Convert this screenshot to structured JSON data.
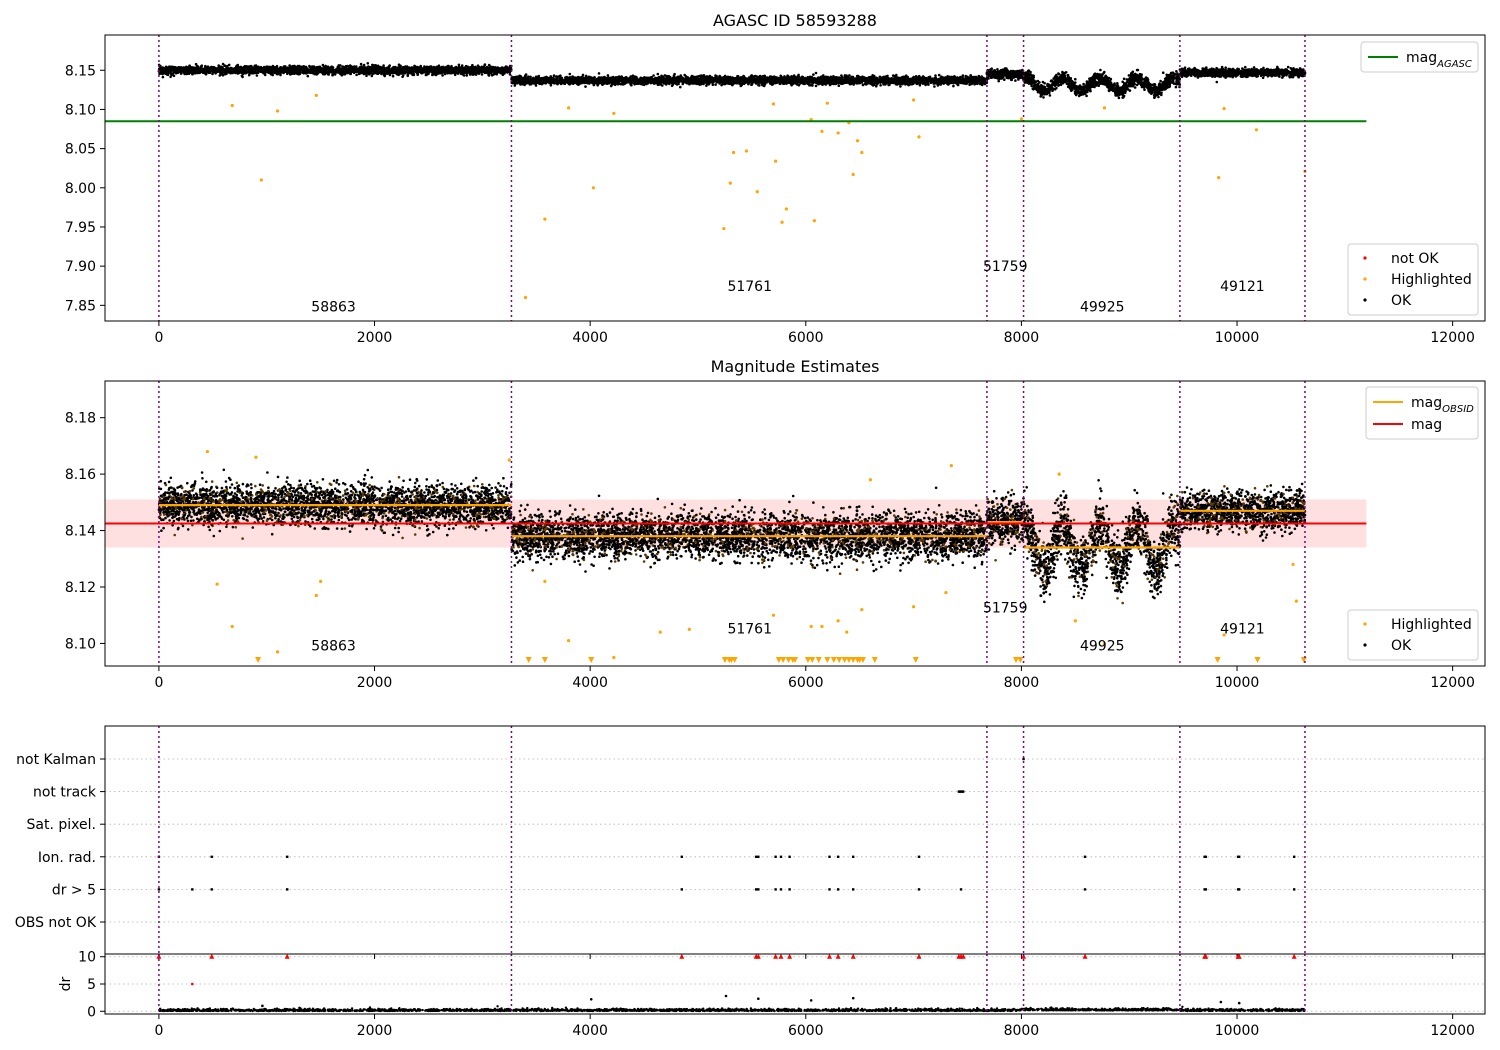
{
  "chart_data": [
    {
      "type": "scatter",
      "title": "AGASC ID 58593288",
      "xlim": [
        -500,
        12300
      ],
      "ylim": [
        7.83,
        8.195
      ],
      "xticks": [
        0,
        2000,
        4000,
        6000,
        8000,
        10000,
        12000
      ],
      "yticks": [
        7.85,
        7.9,
        7.95,
        8.0,
        8.05,
        8.1,
        8.15
      ],
      "vlines": [
        0,
        3270,
        7680,
        8020,
        9470,
        10630
      ],
      "segments": [
        {
          "x0": 0,
          "x1": 3270,
          "mean": 8.15,
          "amp": 0.005
        },
        {
          "x0": 3270,
          "x1": 7680,
          "mean": 8.137,
          "amp": 0.005
        },
        {
          "x0": 7680,
          "x1": 8020,
          "mean": 8.145,
          "amp": 0.006
        },
        {
          "x0": 8020,
          "x1": 9470,
          "mean": 8.132,
          "amp": 0.008
        },
        {
          "x0": 9470,
          "x1": 10630,
          "mean": 8.147,
          "amp": 0.005
        }
      ],
      "hlines": [
        {
          "name": "mag_AGASC",
          "color": "#008000",
          "y": 8.085,
          "x0": -500,
          "x1": 11200
        }
      ],
      "highlighted": [
        [
          950,
          8.01
        ],
        [
          1100,
          8.098
        ],
        [
          3400,
          7.86
        ],
        [
          3580,
          7.96
        ],
        [
          4030,
          8.0
        ],
        [
          5240,
          7.948
        ],
        [
          5300,
          8.006
        ],
        [
          5330,
          8.045
        ],
        [
          5450,
          8.047
        ],
        [
          5550,
          7.995
        ],
        [
          5720,
          8.034
        ],
        [
          5780,
          7.956
        ],
        [
          5820,
          7.973
        ],
        [
          6080,
          7.958
        ],
        [
          6150,
          8.072
        ],
        [
          6300,
          8.07
        ],
        [
          6440,
          8.017
        ],
        [
          6480,
          8.06
        ],
        [
          6520,
          8.045
        ],
        [
          7050,
          8.065
        ],
        [
          8000,
          8.088
        ],
        [
          9830,
          8.013
        ],
        [
          9880,
          8.101
        ],
        [
          10180,
          8.074
        ],
        [
          10630,
          8.021
        ],
        [
          1460,
          8.118
        ],
        [
          680,
          8.105
        ],
        [
          3800,
          8.102
        ],
        [
          4220,
          8.095
        ],
        [
          5700,
          8.107
        ],
        [
          6200,
          8.108
        ],
        [
          7000,
          8.112
        ],
        [
          8770,
          8.102
        ],
        [
          6050,
          8.087
        ],
        [
          6400,
          8.083
        ]
      ],
      "obsids": [
        {
          "label": "58863",
          "x": 1620,
          "y": 7.842
        },
        {
          "label": "51761",
          "x": 5480,
          "y": 7.868
        },
        {
          "label": "51759",
          "x": 7850,
          "y": 7.894
        },
        {
          "label": "49925",
          "x": 8750,
          "y": 7.842
        },
        {
          "label": "49121",
          "x": 10050,
          "y": 7.868
        }
      ],
      "legend_top": [
        {
          "label": "mag",
          "sub": "AGASC",
          "color": "#008000"
        }
      ],
      "legend_bottom": [
        {
          "label": "not OK",
          "color": "#ff0000"
        },
        {
          "label": "Highlighted",
          "color": "#ffa500"
        },
        {
          "label": "OK",
          "color": "#000000"
        }
      ]
    },
    {
      "type": "scatter",
      "title": "Magnitude Estimates",
      "xlim": [
        -500,
        12300
      ],
      "ylim": [
        8.092,
        8.193
      ],
      "xticks": [
        0,
        2000,
        4000,
        6000,
        8000,
        10000,
        12000
      ],
      "yticks": [
        8.1,
        8.12,
        8.14,
        8.16,
        8.18
      ],
      "vlines": [
        0,
        3270,
        7680,
        8020,
        9470,
        10630
      ],
      "segments": [
        {
          "x0": 0,
          "x1": 3270,
          "mean": 8.149,
          "amp": 0.007
        },
        {
          "x0": 3270,
          "x1": 7680,
          "mean": 8.138,
          "amp": 0.008
        },
        {
          "x0": 7680,
          "x1": 8020,
          "mean": 8.143,
          "amp": 0.008
        },
        {
          "x0": 8020,
          "x1": 9470,
          "mean": 8.134,
          "amp": 0.01
        },
        {
          "x0": 9470,
          "x1": 10630,
          "mean": 8.147,
          "amp": 0.007
        }
      ],
      "mag_mean": 8.1425,
      "mag_band": [
        8.134,
        8.151
      ],
      "mag_x": [
        -500,
        11200
      ],
      "highlighted": [
        [
          1100,
          8.097
        ],
        [
          1460,
          8.117
        ],
        [
          1500,
          8.122
        ],
        [
          540,
          8.121
        ],
        [
          680,
          8.106
        ],
        [
          3580,
          8.122
        ],
        [
          3800,
          8.101
        ],
        [
          4220,
          8.095
        ],
        [
          4650,
          8.104
        ],
        [
          4920,
          8.105
        ],
        [
          5700,
          8.11
        ],
        [
          6050,
          8.106
        ],
        [
          6150,
          8.106
        ],
        [
          6300,
          8.108
        ],
        [
          6380,
          8.104
        ],
        [
          6520,
          8.112
        ],
        [
          7000,
          8.113
        ],
        [
          7300,
          8.118
        ],
        [
          8500,
          8.108
        ],
        [
          8770,
          8.1
        ],
        [
          9880,
          8.103
        ],
        [
          10550,
          8.115
        ],
        [
          10520,
          8.128
        ],
        [
          450,
          8.168
        ],
        [
          3250,
          8.165
        ],
        [
          6600,
          8.158
        ],
        [
          7350,
          8.163
        ],
        [
          8350,
          8.16
        ],
        [
          900,
          8.166
        ]
      ],
      "below_range": [
        920,
        3430,
        3580,
        4010,
        5250,
        5290,
        5310,
        5340,
        5750,
        5790,
        5840,
        5880,
        5900,
        6020,
        6060,
        6120,
        6200,
        6260,
        6310,
        6360,
        6400,
        6440,
        6480,
        6500,
        6530,
        6640,
        7020,
        7950,
        7990,
        9820,
        10190,
        10620
      ],
      "obsids": [
        {
          "label": "58863",
          "x": 1620,
          "y": 8.0975
        },
        {
          "label": "51761",
          "x": 5480,
          "y": 8.1035
        },
        {
          "label": "51759",
          "x": 7850,
          "y": 8.111
        },
        {
          "label": "49925",
          "x": 8750,
          "y": 8.0975
        },
        {
          "label": "49121",
          "x": 10050,
          "y": 8.1035
        }
      ],
      "legend_top": [
        {
          "label": "mag",
          "sub": "OBSID",
          "color": "#ffa500"
        },
        {
          "label": "mag",
          "sub": "",
          "color": "#ff0000"
        }
      ],
      "legend_bottom": [
        {
          "label": "Highlighted",
          "color": "#ffa500"
        },
        {
          "label": "OK",
          "color": "#000000"
        }
      ]
    },
    {
      "type": "scatter",
      "xlim": [
        -500,
        12300
      ],
      "xticks": [
        0,
        2000,
        4000,
        6000,
        8000,
        10000,
        12000
      ],
      "vlines": [
        0,
        3270,
        7680,
        8020,
        9470,
        10630
      ],
      "flag_categories": [
        "not Kalman",
        "not track",
        "Sat. pixel.",
        "Ion. rad.",
        "dr > 5",
        "OBS not OK"
      ],
      "flag_points": {
        "not Kalman": [
          8020
        ],
        "not track": [
          7420,
          7430,
          7440,
          7450,
          7460
        ],
        "Sat. pixel.": [],
        "Ion. rad.": [
          0,
          490,
          1190,
          4850,
          5540,
          5560,
          5720,
          5770,
          5850,
          6220,
          6300,
          6440,
          7050,
          8590,
          9700,
          9710,
          10010,
          10020,
          10530
        ],
        "dr > 5": [
          0,
          310,
          490,
          1190,
          4850,
          5540,
          5560,
          5720,
          5770,
          5850,
          6220,
          6300,
          6440,
          7050,
          7440,
          8590,
          9700,
          9710,
          10010,
          10020,
          10530
        ],
        "OBS not OK": []
      },
      "dr_ylabel": "dr",
      "dr_ylim": [
        -0.5,
        10.5
      ],
      "dr_yticks": [
        0,
        5,
        10
      ],
      "dr_clipped": [
        0,
        490,
        1190,
        4850,
        5540,
        5560,
        5720,
        5770,
        5850,
        6220,
        6300,
        6440,
        7050,
        7420,
        7440,
        7460,
        8020,
        8590,
        9700,
        9710,
        10010,
        10020,
        10530
      ],
      "dr_outliers": [
        [
          310,
          5.0
        ],
        [
          4010,
          2.2
        ],
        [
          5260,
          2.8
        ],
        [
          5560,
          2.3
        ],
        [
          6050,
          2.0
        ],
        [
          6440,
          2.4
        ],
        [
          9850,
          1.7
        ],
        [
          10020,
          1.5
        ],
        [
          960,
          1.0
        ]
      ]
    }
  ]
}
